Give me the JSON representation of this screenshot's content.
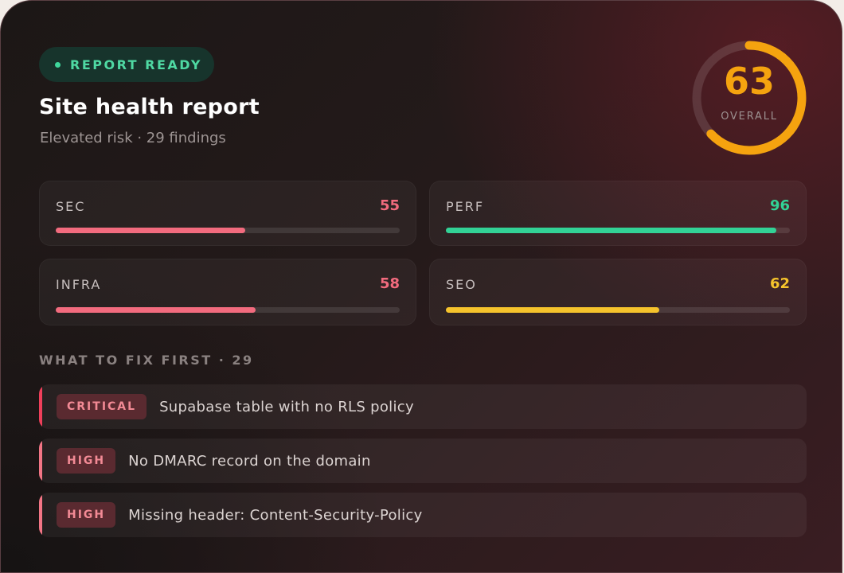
{
  "status_badge": {
    "label": "REPORT READY",
    "color": "#4fd9a3"
  },
  "report": {
    "title": "Site health report",
    "subtitle": "Elevated risk · 29 findings"
  },
  "overall": {
    "score": "63",
    "score_value": 63,
    "max": 100,
    "label": "OVERALL",
    "color": "#f5a30f"
  },
  "metrics": [
    {
      "name": "SEC",
      "value": "55",
      "percent": 55,
      "color": "#f26b7e"
    },
    {
      "name": "PERF",
      "value": "96",
      "percent": 96,
      "color": "#32d296"
    },
    {
      "name": "INFRA",
      "value": "58",
      "percent": 58,
      "color": "#f26b7e"
    },
    {
      "name": "SEO",
      "value": "62",
      "percent": 62,
      "color": "#f5c32c"
    }
  ],
  "fix_first": {
    "label": "WHAT TO FIX FIRST · 29",
    "items": [
      {
        "severity": "CRITICAL",
        "text": "Supabase table with no RLS policy",
        "accent": "#ef3f5a"
      },
      {
        "severity": "HIGH",
        "text": "No DMARC record on the domain",
        "accent": "#f27585"
      },
      {
        "severity": "HIGH",
        "text": "Missing header: Content-Security-Policy",
        "accent": "#f27585"
      }
    ]
  }
}
